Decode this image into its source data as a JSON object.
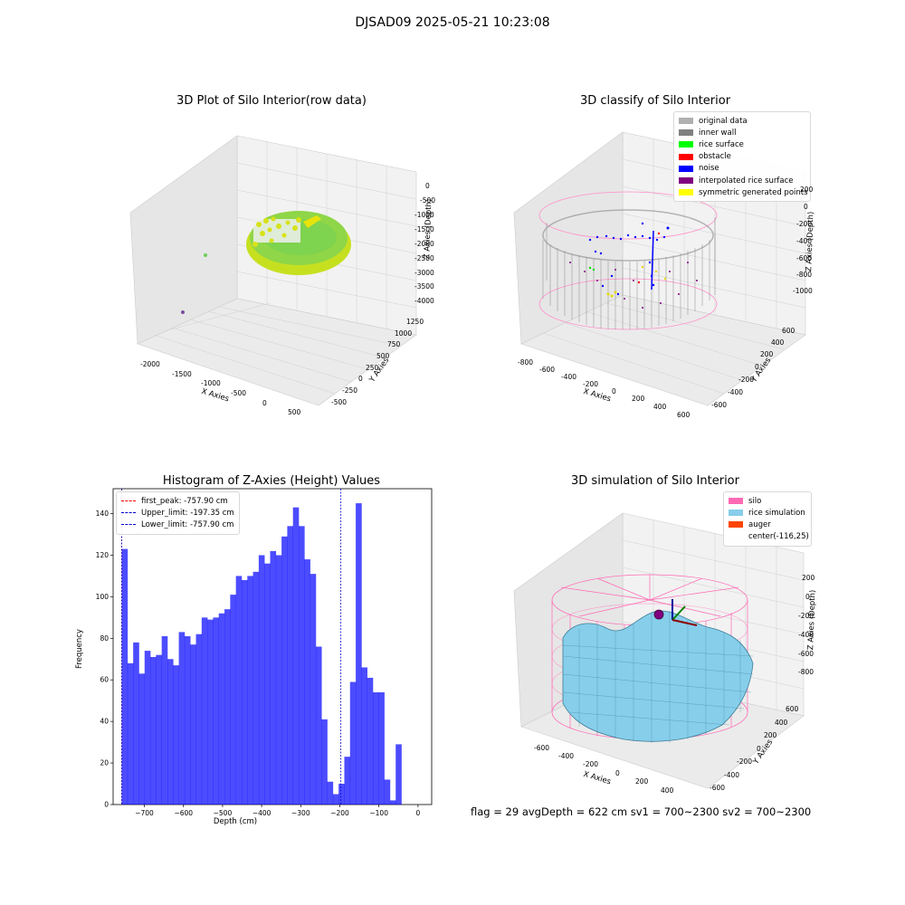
{
  "suptitle": "DJSAD09 2025-05-21 10:23:08",
  "panels": {
    "raw": {
      "title": "3D Plot of Silo Interior(row data)",
      "xlabel": "X Axies",
      "ylabel": "Y Axies",
      "zlabel": "Z Axies (Depth)",
      "xticks": [
        "-2000",
        "-1500",
        "-1000",
        "-500",
        "0",
        "500"
      ],
      "yticks": [
        "-500",
        "-250",
        "0",
        "250",
        "500",
        "750",
        "1000",
        "1250"
      ],
      "zticks": [
        "0",
        "-500",
        "-1000",
        "-1500",
        "-2000",
        "-2500",
        "-3000",
        "-3500",
        "-4000"
      ]
    },
    "classify": {
      "title": "3D classify of Silo Interior",
      "xlabel": "X Axies",
      "ylabel": "Y Axies",
      "zlabel": "Z Axies (Depth)",
      "xticks": [
        "-800",
        "-600",
        "-400",
        "-200",
        "0",
        "200",
        "400",
        "600"
      ],
      "yticks": [
        "-600",
        "-400",
        "-200",
        "0",
        "200",
        "400",
        "600"
      ],
      "zticks": [
        "200",
        "0",
        "-200",
        "-400",
        "-600",
        "-800",
        "-1000"
      ],
      "legend": [
        {
          "label": "original data",
          "color": "#b0b0b0"
        },
        {
          "label": "inner wall",
          "color": "#808080"
        },
        {
          "label": "rice surface",
          "color": "#00ff00"
        },
        {
          "label": "obstacle",
          "color": "#ff0000"
        },
        {
          "label": "noise",
          "color": "#0000ff"
        },
        {
          "label": "interpolated rice surface",
          "color": "#800080"
        },
        {
          "label": "symmetric generated points",
          "color": "#ffff00"
        }
      ]
    },
    "simulation": {
      "title": "3D simulation of Silo Interior",
      "xlabel": "X Axies",
      "ylabel": "Y Axies",
      "zlabel": "Z Axies (Depth)",
      "xticks": [
        "-600",
        "-400",
        "-200",
        "0",
        "200",
        "400"
      ],
      "yticks": [
        "-600",
        "-400",
        "-200",
        "0",
        "200",
        "400",
        "600"
      ],
      "zticks": [
        "200",
        "0",
        "-200",
        "-400",
        "-600",
        "-800"
      ],
      "legend": [
        {
          "label": "silo",
          "color": "#ff69b4"
        },
        {
          "label": "rice simulation",
          "color": "#87ceeb"
        },
        {
          "label": "auger",
          "color": "#ff4500"
        },
        {
          "label": "center(-116,25)",
          "color": ""
        }
      ]
    }
  },
  "chart_data": {
    "type": "bar",
    "title": "Histogram of Z-Axies (Height) Values",
    "xlabel": "Depth (cm)",
    "ylabel": "Frequency",
    "xlim": [
      -780,
      35
    ],
    "ylim": [
      0,
      152
    ],
    "xticks": [
      -700,
      -600,
      -500,
      -400,
      -300,
      -200,
      -100,
      0
    ],
    "yticks": [
      0,
      20,
      40,
      60,
      80,
      100,
      120,
      140
    ],
    "bin_start": -757.9,
    "bin_width": 14.6,
    "values": [
      123,
      68,
      78,
      63,
      74,
      71,
      72,
      81,
      70,
      67,
      83,
      81,
      77,
      82,
      90,
      89,
      90,
      92,
      94,
      101,
      110,
      108,
      110,
      112,
      120,
      116,
      122,
      120,
      129,
      134,
      143,
      134,
      118,
      111,
      76,
      41,
      11,
      5,
      10,
      23,
      59,
      145,
      66,
      61,
      54,
      54,
      12,
      2,
      29
    ],
    "bar_color": "#0000ff",
    "vlines": [
      {
        "label": "first_peak: -757.90 cm",
        "x": -757.9,
        "color": "#ff0000"
      },
      {
        "label": "Upper_limit: -197.35 cm",
        "x": -197.35,
        "color": "#0000cd"
      },
      {
        "label": "Lower_limit: -757.90 cm",
        "x": -757.9,
        "color": "#0000cd"
      }
    ],
    "legend_position": "top-left"
  },
  "status": "flag = 29  avgDepth = 622 cm  sv1 = 700~2300  sv2 = 700~2300"
}
